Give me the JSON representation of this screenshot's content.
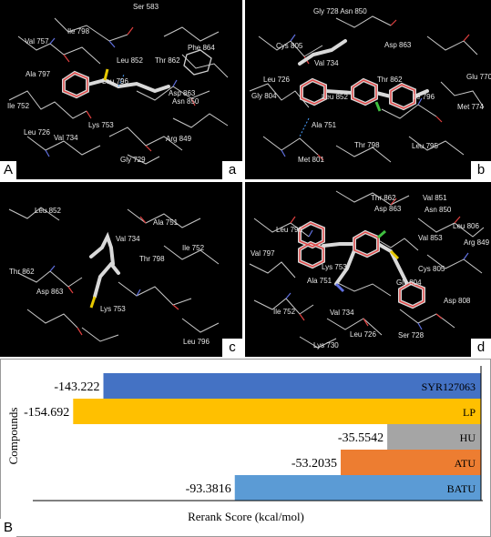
{
  "panels": [
    {
      "letter": "a",
      "label_big": "A",
      "residues": [
        "Ser 583",
        "Ile 798",
        "Val 757",
        "Phe 864",
        "Leu 852",
        "Thr 862",
        "Ala 797",
        "Leu 796",
        "Asp 863",
        "Asn 850",
        "Ile 752",
        "Lys 753",
        "Leu 726",
        "Val 734",
        "Arg 849",
        "Gly 729"
      ]
    },
    {
      "letter": "b",
      "residues": [
        "Gly 728 Asn 850",
        "Cys 805",
        "Asp 863",
        "Val 734",
        "Glu 770",
        "Leu 726",
        "Leu 852",
        "Thr 862",
        "Gly 804",
        "Ile 796",
        "Met 774",
        "Ala 751",
        "Thr 798",
        "Leu 795",
        "Met 801"
      ]
    },
    {
      "letter": "c",
      "residues": [
        "Leu 852",
        "Ala 751",
        "Val 734",
        "Ile 752",
        "Thr 798",
        "Thr 862",
        "Asp 863",
        "Lys 753",
        "Leu 796"
      ]
    },
    {
      "letter": "d",
      "residues": [
        "Thr 862",
        "Val 851",
        "Asp 863",
        "Asn 850",
        "Leu 806",
        "Leu 796",
        "Val 853",
        "Arg 849",
        "Val 797",
        "Cys 805",
        "Lys 753",
        "Gly 804",
        "Ala 751",
        "Asp 808",
        "Ile 752",
        "Val 734",
        "Leu 726",
        "Ser 728",
        "Lys 730"
      ]
    }
  ],
  "chart_panel_label": "B",
  "chart_data": {
    "type": "bar",
    "orientation": "horizontal",
    "categories": [
      "SYR127063",
      "LP",
      "HU",
      "ATU",
      "BATU"
    ],
    "values": [
      -143.222,
      -154.692,
      -35.5542,
      -53.2035,
      -93.3816
    ],
    "value_labels": [
      "-143.222",
      "-154.692",
      "-35.5542",
      "-53.2035",
      "-93.3816"
    ],
    "colors": [
      "#4472c4",
      "#ffc000",
      "#a5a5a5",
      "#ed7d31",
      "#5b9bd5"
    ],
    "xlabel": "Rerank Score (kcal/mol)",
    "ylabel": "Compounds",
    "xlim": [
      -170,
      0
    ],
    "grid": false,
    "legend": "none"
  }
}
